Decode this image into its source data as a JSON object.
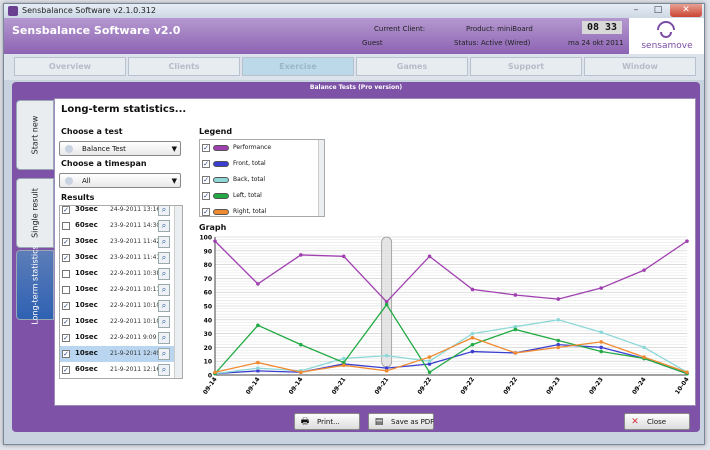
{
  "window": {
    "title": "Sensbalance Software v2.1.0.312",
    "min": "–",
    "max": "□",
    "close": "✕"
  },
  "header": {
    "app_title": "Sensbalance Software v2.0",
    "client_label": "Current Client:",
    "client_value": "Guest",
    "product_label": "Product: miniBoard",
    "status_label": "Status: Active (Wired)",
    "clock": "08 33",
    "date": "ma 24 okt 2011",
    "logo_text": "sensamove",
    "logo_color": "#7a4ea4"
  },
  "nav": {
    "tabs": [
      "Overview",
      "Clients",
      "Exercise",
      "Games",
      "Support",
      "Window"
    ],
    "active_index": 2
  },
  "section_title": "Balance Tests (Pro version)",
  "side_tabs": {
    "start_new": "Start new",
    "single_result": "Single result",
    "long_term": "Long-term statistics"
  },
  "main": {
    "title": "Long-term statistics...",
    "choose_test_label": "Choose a test",
    "test_selected": "Balance Test",
    "choose_timespan_label": "Choose a timespan",
    "timespan_selected": "All",
    "results_label": "Results",
    "results": [
      {
        "duration": "30sec",
        "datetime": "24-9-2011 13:16",
        "checked": true,
        "selected": false
      },
      {
        "duration": "60sec",
        "datetime": "23-9-2011 14:30",
        "checked": false,
        "selected": false
      },
      {
        "duration": "30sec",
        "datetime": "23-9-2011 11:42",
        "checked": true,
        "selected": false
      },
      {
        "duration": "30sec",
        "datetime": "23-9-2011 11:41",
        "checked": true,
        "selected": false
      },
      {
        "duration": "10sec",
        "datetime": "22-9-2011 10:38",
        "checked": false,
        "selected": false
      },
      {
        "duration": "10sec",
        "datetime": "22-9-2011 10:11",
        "checked": false,
        "selected": false
      },
      {
        "duration": "10sec",
        "datetime": "22-9-2011 10:10",
        "checked": true,
        "selected": false
      },
      {
        "duration": "10sec",
        "datetime": "22-9-2011 10:10",
        "checked": true,
        "selected": false
      },
      {
        "duration": "10sec",
        "datetime": "22-9-2011 9:09",
        "checked": true,
        "selected": false
      },
      {
        "duration": "10sec",
        "datetime": "21-9-2011 12:49",
        "checked": true,
        "selected": true
      },
      {
        "duration": "60sec",
        "datetime": "21-9-2011 12:16",
        "checked": true,
        "selected": false
      }
    ],
    "legend_label": "Legend",
    "legend": [
      {
        "name": "Performance",
        "color": "#a040b0"
      },
      {
        "name": "Front, total",
        "color": "#3a3fd0"
      },
      {
        "name": "Back, total",
        "color": "#8fd8d8"
      },
      {
        "name": "Left, total",
        "color": "#22aa44"
      },
      {
        "name": "Right, total",
        "color": "#f08a30"
      }
    ],
    "graph_label": "Graph"
  },
  "chart_data": {
    "type": "line",
    "categories": [
      "09-14",
      "09-14",
      "09-14",
      "09-21",
      "09-21",
      "09-22",
      "09-22",
      "09-22",
      "09-23",
      "09-23",
      "09-24",
      "10-04"
    ],
    "ylim": [
      0,
      100
    ],
    "yticks": [
      0,
      10,
      20,
      30,
      40,
      50,
      60,
      70,
      80,
      90,
      100
    ],
    "grid": true,
    "highlight_index": 4,
    "series": [
      {
        "name": "Performance",
        "color": "#a040b0",
        "values": [
          97,
          66,
          87,
          86,
          53,
          86,
          62,
          58,
          55,
          63,
          76,
          97
        ]
      },
      {
        "name": "Front, total",
        "color": "#3a3fd0",
        "values": [
          1,
          3,
          2,
          8,
          5,
          8,
          17,
          16,
          22,
          20,
          12,
          1
        ]
      },
      {
        "name": "Back, total",
        "color": "#8fd8d8",
        "values": [
          1,
          5,
          3,
          12,
          14,
          10,
          30,
          35,
          40,
          31,
          20,
          2
        ]
      },
      {
        "name": "Left, total",
        "color": "#22aa44",
        "values": [
          1,
          36,
          22,
          9,
          51,
          2,
          22,
          33,
          25,
          17,
          12,
          1
        ]
      },
      {
        "name": "Right, total",
        "color": "#f08a30",
        "values": [
          2,
          9,
          2,
          7,
          3,
          13,
          27,
          16,
          20,
          24,
          13,
          2
        ]
      }
    ]
  },
  "footer": {
    "print": "Print...",
    "save_pdf": "Save as PDF",
    "close": "Close"
  }
}
